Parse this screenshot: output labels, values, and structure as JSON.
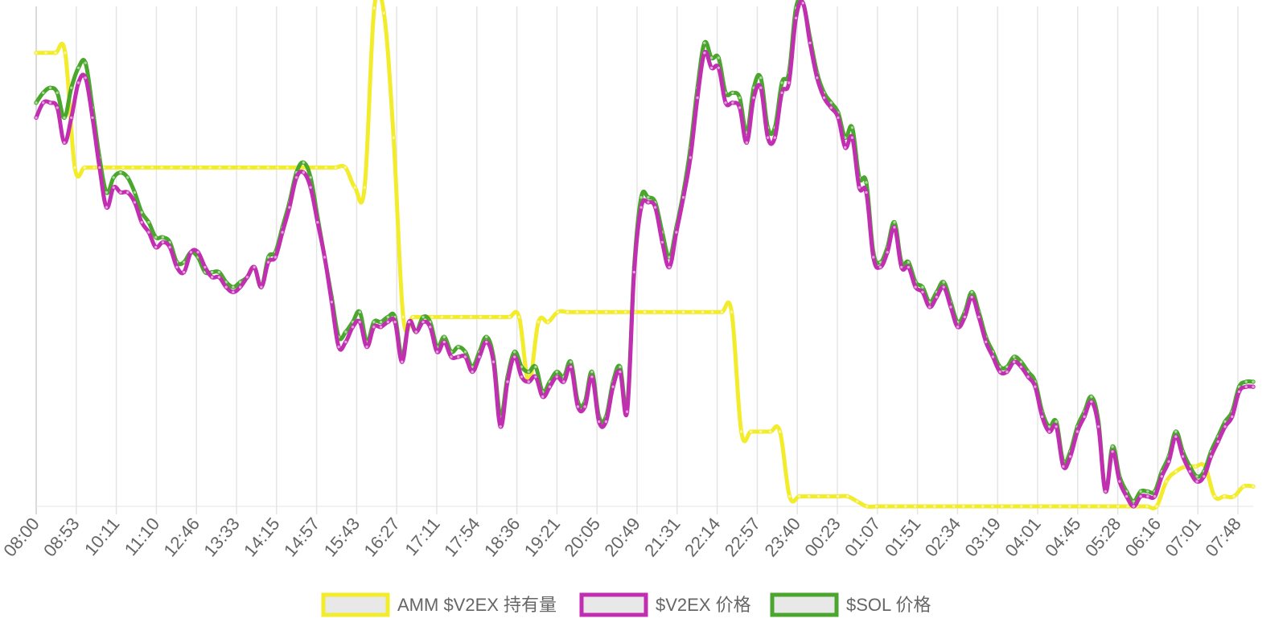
{
  "chart_data": {
    "type": "line",
    "title": "",
    "xlabel": "",
    "ylabel": "",
    "ylim": [
      0,
      100
    ],
    "grid": {
      "vertical": true,
      "horizontal": false
    },
    "legend_position": "bottom-center",
    "x_ticks": [
      "08:00",
      "08:53",
      "10:11",
      "11:10",
      "12:46",
      "13:33",
      "14:15",
      "14:57",
      "15:43",
      "16:27",
      "17:11",
      "17:54",
      "18:36",
      "19:21",
      "20:05",
      "20:49",
      "21:31",
      "22:14",
      "22:57",
      "23:40",
      "00:23",
      "01:07",
      "01:51",
      "02:34",
      "03:19",
      "04:01",
      "04:45",
      "05:28",
      "06:16",
      "07:01",
      "07:48"
    ],
    "series": [
      {
        "name": "AMM $V2EX 持有量",
        "color": "#f2ec2a",
        "values": [
          91,
          91,
          91,
          91,
          68,
          68,
          68,
          68,
          68,
          68,
          68,
          68,
          68,
          68,
          68,
          68,
          68,
          68,
          68,
          68,
          68,
          68,
          68,
          68,
          68,
          68,
          68,
          68,
          68,
          68,
          68,
          68,
          68,
          64,
          64,
          100,
          99,
          74,
          38,
          38,
          38,
          38,
          38,
          38,
          38,
          38,
          38,
          38,
          38,
          38,
          38,
          25,
          37,
          37,
          39,
          39,
          39,
          39,
          39,
          39,
          39,
          39,
          39,
          39,
          39,
          39,
          39,
          39,
          39,
          39,
          39,
          39,
          39,
          15,
          15,
          15,
          15,
          15,
          2,
          2,
          2,
          2,
          2,
          2,
          2,
          1,
          0,
          0,
          0,
          0,
          0,
          0,
          0,
          0,
          0,
          0,
          0,
          0,
          0,
          0,
          0,
          0,
          0,
          0,
          0,
          0,
          0,
          0,
          0,
          0,
          0,
          0,
          0,
          0,
          0,
          0,
          0,
          5,
          7,
          8,
          8,
          8,
          2,
          2,
          2,
          4,
          4
        ]
      },
      {
        "name": "$V2EX 价格",
        "color": "#c22eb1",
        "values": [
          78,
          81,
          81,
          80,
          73,
          78,
          85,
          86,
          78,
          68,
          60,
          64,
          63,
          63,
          61,
          57,
          55,
          52,
          53,
          52,
          48,
          47,
          51,
          51,
          48,
          46,
          46,
          44,
          43,
          44,
          46,
          48,
          44,
          49,
          50,
          55,
          60,
          66,
          67,
          64,
          57,
          50,
          41,
          32,
          33,
          36,
          37,
          32,
          36,
          36,
          37,
          37,
          29,
          37,
          35,
          37,
          36,
          31,
          33,
          30,
          30,
          30,
          27,
          30,
          33,
          29,
          16,
          25,
          30,
          26,
          25,
          26,
          22,
          24,
          26,
          25,
          28,
          20,
          20,
          26,
          17,
          17,
          24,
          27,
          19,
          47,
          60,
          61,
          60,
          53,
          48,
          55,
          62,
          70,
          82,
          91,
          88,
          88,
          81,
          81,
          80,
          73,
          82,
          84,
          74,
          74,
          83,
          85,
          98,
          101,
          93,
          86,
          82,
          80,
          78,
          72,
          74,
          64,
          63,
          50,
          48,
          51,
          56,
          48,
          48,
          44,
          43,
          40,
          42,
          44,
          40,
          36,
          38,
          42,
          38,
          33,
          30,
          27,
          27,
          29,
          28,
          26,
          24,
          18,
          15,
          16,
          8,
          10,
          15,
          18,
          21,
          16,
          3,
          11,
          5,
          2,
          0,
          2,
          2,
          2,
          6,
          9,
          14,
          10,
          7,
          5,
          6,
          10,
          13,
          16,
          18,
          23,
          24,
          24
        ]
      },
      {
        "name": "$SOL 价格",
        "color": "#4aa62d",
        "values": [
          81,
          83,
          84,
          83,
          78,
          84,
          88,
          89,
          80,
          70,
          63,
          66,
          67,
          66,
          63,
          59,
          57,
          54,
          54,
          53,
          49,
          49,
          51,
          50,
          47,
          47,
          47,
          45,
          44,
          45,
          46,
          48,
          44,
          50,
          51,
          56,
          61,
          67,
          69,
          66,
          58,
          50,
          42,
          34,
          35,
          37,
          39,
          33,
          37,
          37,
          38,
          38,
          30,
          37,
          35,
          38,
          37,
          32,
          34,
          31,
          32,
          31,
          28,
          31,
          34,
          30,
          18,
          26,
          31,
          28,
          27,
          28,
          23,
          25,
          27,
          26,
          29,
          21,
          21,
          27,
          18,
          18,
          25,
          28,
          20,
          48,
          62,
          62,
          61,
          55,
          50,
          56,
          63,
          72,
          84,
          93,
          90,
          90,
          83,
          83,
          82,
          75,
          84,
          86,
          76,
          76,
          85,
          87,
          100,
          101,
          94,
          87,
          83,
          81,
          79,
          74,
          76,
          66,
          65,
          51,
          49,
          52,
          57,
          49,
          49,
          45,
          44,
          41,
          43,
          45,
          41,
          37,
          39,
          43,
          39,
          34,
          31,
          28,
          28,
          30,
          29,
          27,
          25,
          19,
          16,
          17,
          9,
          11,
          16,
          19,
          22,
          17,
          3,
          12,
          6,
          3,
          1,
          3,
          3,
          3,
          7,
          10,
          15,
          11,
          8,
          6,
          7,
          11,
          14,
          17,
          19,
          24,
          25,
          25
        ]
      }
    ]
  }
}
